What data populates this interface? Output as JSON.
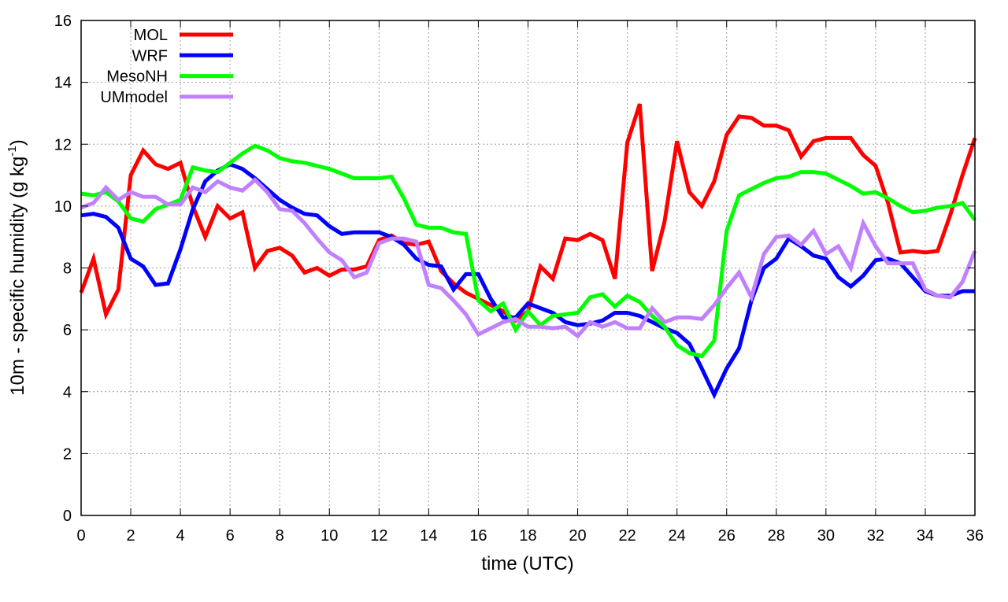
{
  "chart_data": {
    "type": "line",
    "title": "",
    "xlabel": "time (UTC)",
    "ylabel": "10m - specific humidity (g kg",
    "ylabel_sup": "-1",
    "ylabel_end": ")",
    "xlim": [
      0,
      36
    ],
    "ylim": [
      0,
      16
    ],
    "xticks": [
      "0",
      "2",
      "4",
      "6",
      "8",
      "10",
      "12",
      "14",
      "16",
      "18",
      "20",
      "22",
      "24",
      "26",
      "28",
      "30",
      "32",
      "34",
      "36"
    ],
    "yticks": [
      "0",
      "2",
      "4",
      "6",
      "8",
      "10",
      "12",
      "14",
      "16"
    ],
    "grid": true,
    "legend_position": "top-left",
    "x_step": 0.5,
    "series": [
      {
        "name": "MOL",
        "color": "#ff0000",
        "values": [
          7.2,
          8.3,
          6.5,
          7.3,
          11.0,
          11.8,
          11.35,
          11.2,
          11.4,
          10.0,
          9.0,
          10.0,
          9.6,
          9.8,
          8.0,
          8.55,
          8.65,
          8.4,
          7.85,
          8.0,
          7.75,
          7.95,
          7.95,
          8.05,
          8.9,
          9.05,
          8.8,
          8.75,
          8.85,
          7.9,
          7.5,
          7.2,
          7.0,
          6.8,
          6.6,
          6.3,
          6.6,
          8.05,
          7.65,
          8.95,
          8.9,
          9.1,
          8.9,
          7.65,
          12.05,
          13.3,
          7.9,
          9.5,
          12.1,
          10.45,
          10.0,
          10.8,
          12.3,
          12.9,
          12.85,
          12.6,
          12.6,
          12.45,
          11.6,
          12.1,
          12.2,
          12.2,
          12.2,
          11.65,
          11.3,
          10.1,
          8.5,
          8.55,
          8.5,
          8.55,
          9.7,
          11.0,
          12.2
        ]
      },
      {
        "name": "WRF",
        "color": "#0000ff",
        "values": [
          9.7,
          9.75,
          9.65,
          9.3,
          8.3,
          8.05,
          7.45,
          7.5,
          8.6,
          9.9,
          10.8,
          11.15,
          11.35,
          11.2,
          10.9,
          10.55,
          10.2,
          9.95,
          9.75,
          9.7,
          9.35,
          9.1,
          9.15,
          9.15,
          9.15,
          9.0,
          8.75,
          8.3,
          8.1,
          8.05,
          7.3,
          7.8,
          7.8,
          7.0,
          6.4,
          6.4,
          6.85,
          6.7,
          6.55,
          6.25,
          6.15,
          6.2,
          6.3,
          6.55,
          6.55,
          6.45,
          6.25,
          6.05,
          5.9,
          5.55,
          4.75,
          3.9,
          4.75,
          5.4,
          6.95,
          8.0,
          8.3,
          8.95,
          8.7,
          8.4,
          8.3,
          7.7,
          7.4,
          7.75,
          8.25,
          8.3,
          8.15,
          7.7,
          7.25,
          7.1,
          7.1,
          7.25,
          7.25
        ]
      },
      {
        "name": "MesoNH",
        "color": "#00ff00",
        "values": [
          10.4,
          10.35,
          10.45,
          10.15,
          9.6,
          9.5,
          9.9,
          10.05,
          10.2,
          11.25,
          11.15,
          11.1,
          11.4,
          11.7,
          11.95,
          11.8,
          11.55,
          11.45,
          11.4,
          11.3,
          11.2,
          11.05,
          10.9,
          10.9,
          10.9,
          10.95,
          10.25,
          9.4,
          9.3,
          9.3,
          9.15,
          9.1,
          6.95,
          6.6,
          6.85,
          6.0,
          6.6,
          6.15,
          6.45,
          6.5,
          6.55,
          7.05,
          7.15,
          6.75,
          7.1,
          6.9,
          6.45,
          6.1,
          5.5,
          5.25,
          5.15,
          5.65,
          9.2,
          10.35,
          10.55,
          10.75,
          10.9,
          10.95,
          11.1,
          11.1,
          11.05,
          10.85,
          10.65,
          10.4,
          10.45,
          10.25,
          10.0,
          9.8,
          9.85,
          9.95,
          10.0,
          10.1,
          9.55
        ]
      },
      {
        "name": "UMmodel",
        "color": "#c080ff",
        "values": [
          9.95,
          10.1,
          10.6,
          10.2,
          10.45,
          10.3,
          10.3,
          10.05,
          10.05,
          10.6,
          10.45,
          10.8,
          10.6,
          10.5,
          10.85,
          10.45,
          9.9,
          9.85,
          9.45,
          8.95,
          8.5,
          8.25,
          7.7,
          7.85,
          8.8,
          8.95,
          8.95,
          8.85,
          7.45,
          7.35,
          6.95,
          6.5,
          5.85,
          6.05,
          6.25,
          6.35,
          6.1,
          6.1,
          6.05,
          6.1,
          5.8,
          6.25,
          6.1,
          6.25,
          6.05,
          6.05,
          6.7,
          6.25,
          6.4,
          6.4,
          6.35,
          6.8,
          7.35,
          7.85,
          7.05,
          8.45,
          9.0,
          9.05,
          8.75,
          9.2,
          8.45,
          8.7,
          8.0,
          9.45,
          8.7,
          8.15,
          8.15,
          8.15,
          7.3,
          7.1,
          7.05,
          7.55,
          8.55
        ]
      }
    ]
  }
}
